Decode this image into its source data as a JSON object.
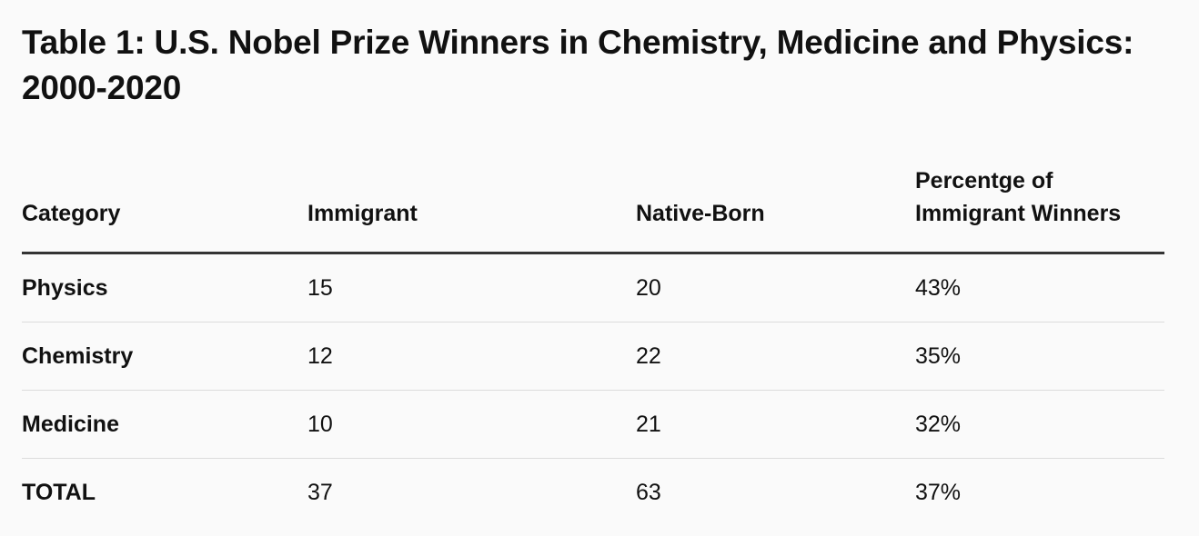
{
  "chart_data": {
    "type": "table",
    "title": "Table 1: U.S. Nobel Prize Winners in Chemistry, Medicine and Physics: 2000-2020",
    "columns": [
      "Category",
      "Immigrant",
      "Native-Born",
      "Percentge of Immigrant Winners"
    ],
    "rows": [
      {
        "category": "Physics",
        "immigrant": "15",
        "native_born": "20",
        "percentage": "43%"
      },
      {
        "category": "Chemistry",
        "immigrant": "12",
        "native_born": "22",
        "percentage": "35%"
      },
      {
        "category": "Medicine",
        "immigrant": "10",
        "native_born": "21",
        "percentage": "32%"
      },
      {
        "category": "TOTAL",
        "immigrant": "37",
        "native_born": "63",
        "percentage": "37%"
      }
    ]
  }
}
